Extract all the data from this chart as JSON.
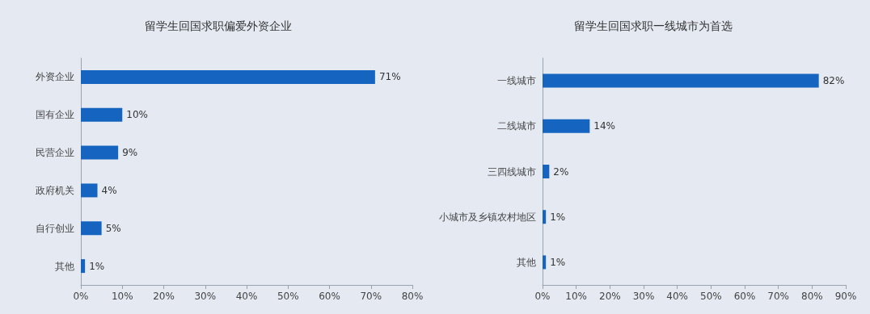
{
  "chart_data": [
    {
      "type": "bar",
      "orientation": "horizontal",
      "title": "留学生回国求职偏爱外资企业",
      "categories": [
        "外资企业",
        "国有企业",
        "民营企业",
        "政府机关",
        "自行创业",
        "其他"
      ],
      "values": [
        71,
        10,
        9,
        4,
        5,
        1
      ],
      "value_labels": [
        "71%",
        "10%",
        "9%",
        "4%",
        "5%",
        "1%"
      ],
      "color": "#1565c0",
      "xlim": [
        0,
        80
      ],
      "xticks": [
        {
          "value": 0,
          "label": "0%"
        },
        {
          "value": 10,
          "label": "10%"
        },
        {
          "value": 20,
          "label": "20%"
        },
        {
          "value": 30,
          "label": "30%"
        },
        {
          "value": 40,
          "label": "40%"
        },
        {
          "value": 50,
          "label": "50%"
        },
        {
          "value": 60,
          "label": "60%"
        },
        {
          "value": 70,
          "label": "70%"
        },
        {
          "value": 80,
          "label": "80%"
        }
      ],
      "grid": false
    },
    {
      "type": "bar",
      "orientation": "horizontal",
      "title": "留学生回国求职一线城市为首选",
      "categories": [
        "一线城市",
        "二线城市",
        "三四线城市",
        "小城市及乡镇农村地区",
        "其他"
      ],
      "values": [
        82,
        14,
        2,
        1,
        1
      ],
      "value_labels": [
        "82%",
        "14%",
        "2%",
        "1%",
        "1%"
      ],
      "color": "#1565c0",
      "xlim": [
        0,
        90
      ],
      "xticks": [
        {
          "value": 0,
          "label": "0%"
        },
        {
          "value": 10,
          "label": "10%"
        },
        {
          "value": 20,
          "label": "20%"
        },
        {
          "value": 30,
          "label": "30%"
        },
        {
          "value": 40,
          "label": "40%"
        },
        {
          "value": 50,
          "label": "50%"
        },
        {
          "value": 60,
          "label": "60%"
        },
        {
          "value": 70,
          "label": "70%"
        },
        {
          "value": 80,
          "label": "80%"
        },
        {
          "value": 90,
          "label": "90%"
        }
      ],
      "grid": false
    }
  ]
}
